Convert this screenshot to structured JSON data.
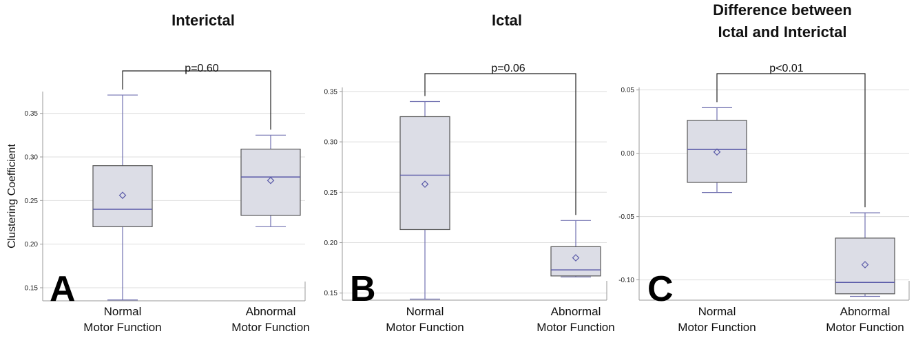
{
  "chart_data": [
    {
      "type": "box",
      "panel_letter": "A",
      "title_lines": [
        "Interictal"
      ],
      "ylabel": "Clustering Coefficient",
      "categories": [
        [
          "Normal",
          "Motor Function"
        ],
        [
          "Abnormal",
          "Motor Function"
        ]
      ],
      "ylim": [
        0.135,
        0.375
      ],
      "ticks": [
        "0.15",
        "0.20",
        "0.25",
        "0.30",
        "0.35"
      ],
      "grid": true,
      "boxes": [
        {
          "min": 0.136,
          "q1": 0.22,
          "median": 0.24,
          "q3": 0.29,
          "max": 0.371,
          "mean": 0.256
        },
        {
          "min": 0.22,
          "q1": 0.233,
          "median": 0.277,
          "q3": 0.309,
          "max": 0.325,
          "mean": 0.273
        }
      ],
      "p_value": "p=0.60"
    },
    {
      "type": "box",
      "panel_letter": "B",
      "title_lines": [
        "Ictal"
      ],
      "ylabel": "",
      "categories": [
        [
          "Normal",
          "Motor Function"
        ],
        [
          "Abnormal",
          "Motor Function"
        ]
      ],
      "ylim": [
        0.143,
        0.354
      ],
      "ticks": [
        "0.15",
        "0.20",
        "0.25",
        "0.30",
        "0.35"
      ],
      "grid": true,
      "boxes": [
        {
          "min": 0.144,
          "q1": 0.213,
          "median": 0.267,
          "q3": 0.325,
          "max": 0.34,
          "mean": 0.258
        },
        {
          "min": 0.166,
          "q1": 0.167,
          "median": 0.173,
          "q3": 0.196,
          "max": 0.222,
          "mean": 0.185
        }
      ],
      "p_value": "p=0.06"
    },
    {
      "type": "box",
      "panel_letter": "C",
      "title_lines": [
        "Difference between",
        "Ictal and Interictal"
      ],
      "ylabel": "",
      "categories": [
        [
          "Normal",
          "Motor Function"
        ],
        [
          "Abnormal",
          "Motor Function"
        ]
      ],
      "ylim": [
        -0.116,
        0.052
      ],
      "ticks": [
        "0.05",
        "0.00",
        "-0.05",
        "-0.10"
      ],
      "grid": true,
      "boxes": [
        {
          "min": -0.031,
          "q1": -0.023,
          "median": 0.003,
          "q3": 0.026,
          "max": 0.036,
          "mean": 0.001
        },
        {
          "min": -0.113,
          "q1": -0.111,
          "median": -0.102,
          "q3": -0.067,
          "max": -0.047,
          "mean": -0.088
        }
      ],
      "p_value": "p<0.01"
    }
  ],
  "colors": {
    "box_fill": "#dcdde6",
    "box_stroke": "#555555",
    "median": "#5a5aa8",
    "whisker": "#7070b0",
    "grid": "#dddddd",
    "axis": "#999999",
    "text": "#111111"
  }
}
